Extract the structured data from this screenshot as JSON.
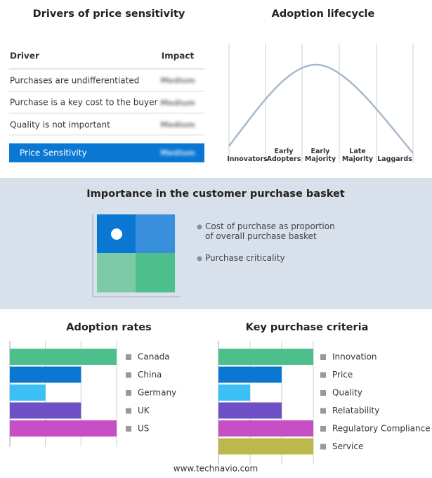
{
  "drivers": {
    "title": "Drivers of price sensitivity",
    "header": [
      "Driver",
      "Impact"
    ],
    "rows": [
      [
        "Purchases are undifferentiated",
        "Medium"
      ],
      [
        "Purchase is a key cost to the buyer",
        "Medium"
      ],
      [
        "Quality is not important",
        "Medium"
      ]
    ],
    "summary": [
      "Price Sensitivity",
      "Medium"
    ]
  },
  "lifecycle": {
    "title": "Adoption lifecycle",
    "stages": [
      "Innovators",
      "Early Adopters",
      "Early Majority",
      "Late Majority",
      "Laggards"
    ]
  },
  "basket": {
    "title": "Importance in the customer purchase basket",
    "legend": [
      "Cost of purchase as proportion of overall purchase basket",
      "Purchase criticality"
    ]
  },
  "chart_data": [
    {
      "type": "bar",
      "orientation": "horizontal",
      "title": "Adoption rates",
      "categories": [
        "Canada",
        "China",
        "Germany",
        "UK",
        "US"
      ],
      "values": [
        3,
        2,
        1,
        2,
        3
      ],
      "colors": [
        "#4cbf8c",
        "#0a78d2",
        "#3bbff5",
        "#6f4fc5",
        "#c64fc5"
      ],
      "xlim": [
        0,
        3
      ],
      "xticks": [
        0,
        1,
        2,
        3
      ],
      "grid": true
    },
    {
      "type": "bar",
      "orientation": "horizontal",
      "title": "Key purchase criteria",
      "categories": [
        "Innovation",
        "Price",
        "Quality",
        "Relatability",
        "Regulatory Compliance",
        "Service"
      ],
      "values": [
        3,
        2,
        1,
        2,
        3,
        3
      ],
      "colors": [
        "#4cbf8c",
        "#0a78d2",
        "#3bbff5",
        "#6f4fc5",
        "#c64fc5",
        "#bdb84e"
      ],
      "xlim": [
        0,
        3
      ],
      "xticks": [
        0,
        1,
        2,
        3
      ],
      "grid": true
    }
  ],
  "footer": "www.technavio.com"
}
